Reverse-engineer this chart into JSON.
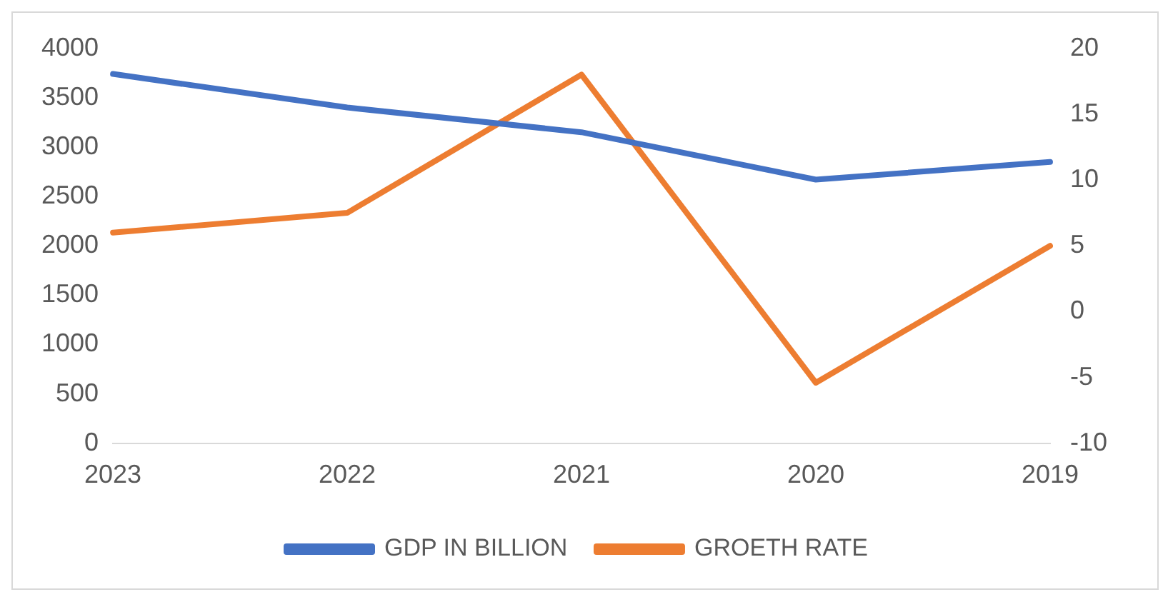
{
  "chart_data": {
    "type": "line",
    "categories": [
      "2023",
      "2022",
      "2021",
      "2020",
      "2019"
    ],
    "series": [
      {
        "name": "GDP IN BILLION",
        "color": "#4472c4",
        "values": [
          3740,
          3400,
          3150,
          2670,
          2850
        ]
      },
      {
        "name": "GROETH RATE",
        "color": "#ed7d31",
        "values": [
          6,
          7.5,
          18,
          -5.4,
          5
        ],
        "axis": "y2"
      }
    ],
    "ylim": [
      0,
      4000
    ],
    "yticks": [
      0,
      500,
      1000,
      1500,
      2000,
      2500,
      3000,
      3500,
      4000
    ],
    "y2lim": [
      -10,
      20
    ],
    "y2ticks": [
      -10,
      -5,
      0,
      5,
      10,
      15,
      20
    ],
    "grid": false,
    "legend": "bottom",
    "marker": "none",
    "line_style": "solid"
  }
}
